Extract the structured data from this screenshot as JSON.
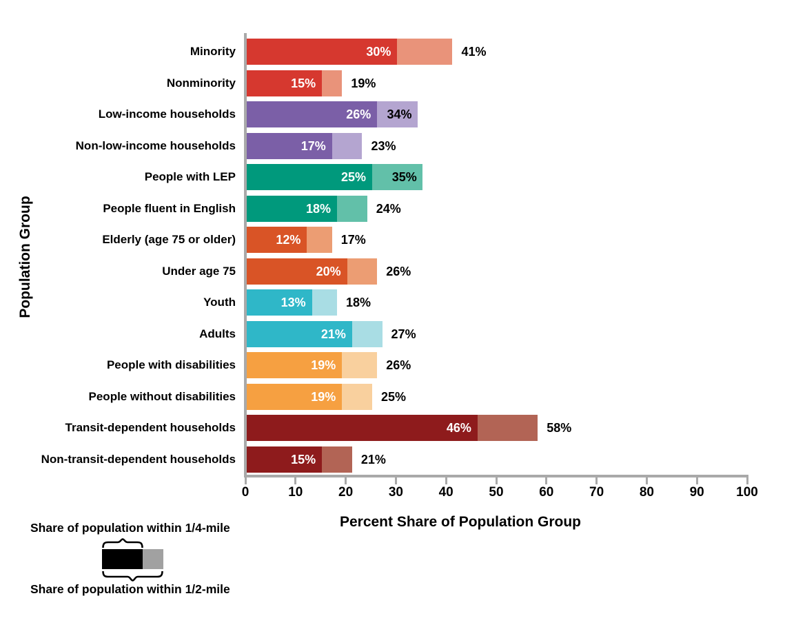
{
  "y_axis_title": "Population Group",
  "x_axis_title": "Percent Share of Population Group",
  "axis_color": "#a9a9a9",
  "legend": {
    "quarter_label": "Share of population within 1/4-mile",
    "half_label": "Share of population within 1/2-mile",
    "sample_dark_color": "#000000",
    "sample_light_color": "#a1a1a1"
  },
  "chart_data": {
    "type": "bar",
    "orientation": "horizontal",
    "stacked": true,
    "title": "",
    "xlabel": "Percent Share of Population Group",
    "ylabel": "Population Group",
    "xlim": [
      0,
      100
    ],
    "x_ticks": [
      0,
      10,
      20,
      30,
      40,
      50,
      60,
      70,
      80,
      90,
      100
    ],
    "grid": false,
    "legend_position": "bottom-left",
    "series": [
      {
        "name": "Share of population within 1/4-mile"
      },
      {
        "name": "Share of population within 1/2-mile"
      }
    ],
    "categories": [
      "Minority",
      "Nonminority",
      "Low-income households",
      "Non-low-income households",
      "People with LEP",
      "People fluent in English",
      "Elderly (age 75 or older)",
      "Under age 75",
      "Youth",
      "Adults",
      "People with disabilities",
      "People without disabilities",
      "Transit-dependent households",
      "Non-transit-dependent households"
    ],
    "rows": [
      {
        "category": "Minority",
        "quarter_pct": 30,
        "half_pct": 41,
        "dark": "#d6382f",
        "light": "#e9937a",
        "half_label_inside": false
      },
      {
        "category": "Nonminority",
        "quarter_pct": 15,
        "half_pct": 19,
        "dark": "#d6382f",
        "light": "#e9937a",
        "half_label_inside": false
      },
      {
        "category": "Low-income households",
        "quarter_pct": 26,
        "half_pct": 34,
        "dark": "#7b5fa7",
        "light": "#b4a5d0",
        "half_label_inside": true
      },
      {
        "category": "Non-low-income households",
        "quarter_pct": 17,
        "half_pct": 23,
        "dark": "#7b5fa7",
        "light": "#b4a5d0",
        "half_label_inside": false
      },
      {
        "category": "People with LEP",
        "quarter_pct": 25,
        "half_pct": 35,
        "dark": "#00997c",
        "light": "#62c0a9",
        "half_label_inside": true
      },
      {
        "category": "People fluent in English",
        "quarter_pct": 18,
        "half_pct": 24,
        "dark": "#00997c",
        "light": "#62c0a9",
        "half_label_inside": false
      },
      {
        "category": "Elderly (age 75 or older)",
        "quarter_pct": 12,
        "half_pct": 17,
        "dark": "#d95426",
        "light": "#ec9d73",
        "half_label_inside": false
      },
      {
        "category": "Under age 75",
        "quarter_pct": 20,
        "half_pct": 26,
        "dark": "#d95426",
        "light": "#ec9d73",
        "half_label_inside": false
      },
      {
        "category": "Youth",
        "quarter_pct": 13,
        "half_pct": 18,
        "dark": "#2fb7c8",
        "light": "#a9dde4",
        "half_label_inside": false
      },
      {
        "category": "Adults",
        "quarter_pct": 21,
        "half_pct": 27,
        "dark": "#2fb7c8",
        "light": "#a9dde4",
        "half_label_inside": false
      },
      {
        "category": "People with disabilities",
        "quarter_pct": 19,
        "half_pct": 26,
        "dark": "#f6a041",
        "light": "#f9d09e",
        "half_label_inside": false
      },
      {
        "category": "People without disabilities",
        "quarter_pct": 19,
        "half_pct": 25,
        "dark": "#f6a041",
        "light": "#f9d09e",
        "half_label_inside": false
      },
      {
        "category": "Transit-dependent households",
        "quarter_pct": 46,
        "half_pct": 58,
        "dark": "#8e1b1c",
        "light": "#b26455",
        "half_label_inside": false
      },
      {
        "category": "Non-transit-dependent households",
        "quarter_pct": 15,
        "half_pct": 21,
        "dark": "#8e1b1c",
        "light": "#b26455",
        "half_label_inside": false
      }
    ]
  }
}
